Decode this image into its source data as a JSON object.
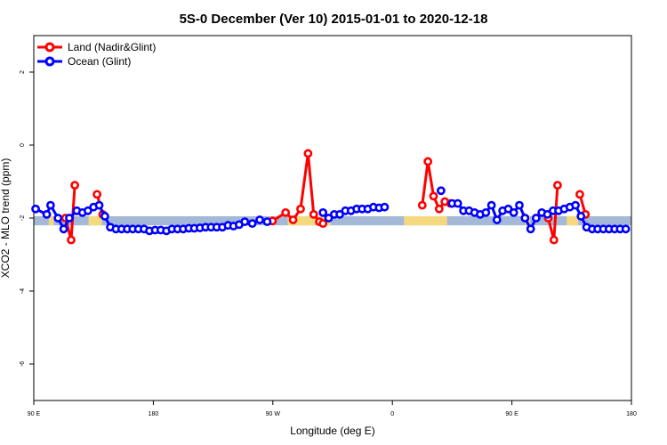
{
  "chart_data": {
    "type": "line",
    "title": "5S-0 December (Ver 10)   2015-01-01 to 2020-12-18",
    "xlabel": "Longitude (deg E)",
    "ylabel": "XCO2 - MLO trend (ppm)",
    "xlim": [
      90,
      450
    ],
    "ylim": [
      -7,
      3
    ],
    "x_ticks": [
      {
        "value": 90,
        "label": "90 E"
      },
      {
        "value": 162,
        "label": "180"
      },
      {
        "value": 234,
        "label": "90 W"
      },
      {
        "value": 306,
        "label": "0"
      },
      {
        "value": 378,
        "label": "90 E"
      },
      {
        "value": 450,
        "label": "180"
      }
    ],
    "y_ticks": [
      2,
      0,
      -2,
      -4,
      -6
    ],
    "legend": {
      "position": "top-left",
      "entries": [
        {
          "label": "Land (Nadir&Glint)",
          "color": "#ff0000"
        },
        {
          "label": "Ocean (Glint)",
          "color": "#0000ff"
        }
      ]
    },
    "surface_strip": {
      "y_range": [
        -2.2,
        -1.95
      ],
      "ocean_color": "#a4b8d8",
      "land_color": "#f5d97f",
      "land_x": [
        [
          99,
          102
        ],
        [
          123,
          131
        ],
        [
          243,
          269
        ],
        [
          313,
          339
        ],
        [
          386,
          389
        ],
        [
          411,
          418
        ]
      ]
    },
    "series": [
      {
        "name": "Land (Nadir&Glint)",
        "color": "#ff0000",
        "segments": [
          [
            [
              109.1,
              -2.0
            ],
            [
              112.5,
              -2.6
            ],
            [
              114.7,
              -1.1
            ]
          ],
          [
            [
              128.1,
              -1.35
            ],
            [
              131.5,
              -1.9
            ]
          ],
          [
            [
              233.8,
              -2.08
            ],
            [
              241.7,
              -1.85
            ],
            [
              246.2,
              -2.05
            ],
            [
              250.7,
              -1.75
            ],
            [
              255.2,
              -0.23
            ],
            [
              258.6,
              -1.9
            ],
            [
              262.0,
              -2.1
            ],
            [
              264.2,
              -2.15
            ]
          ],
          [
            [
              324.0,
              -1.65
            ],
            [
              327.4,
              -0.45
            ],
            [
              330.8,
              -1.4
            ],
            [
              334.2,
              -1.75
            ],
            [
              337.6,
              -1.55
            ],
            [
              341.0,
              -1.6
            ]
          ],
          [
            [
              399.9,
              -2.0
            ],
            [
              403.3,
              -2.6
            ],
            [
              405.5,
              -1.1
            ]
          ],
          [
            [
              418.9,
              -1.35
            ],
            [
              422.3,
              -1.9
            ]
          ]
        ]
      },
      {
        "name": "Ocean (Glint)",
        "color": "#0000ff",
        "segments": [
          [
            [
              91.1,
              -1.75
            ],
            [
              97.8,
              -1.9
            ],
            [
              100.1,
              -1.65
            ],
            [
              104.6,
              -2.0
            ],
            [
              108.0,
              -2.3
            ],
            [
              111.4,
              -2.0
            ],
            [
              115.9,
              -1.8
            ],
            [
              119.3,
              -1.85
            ],
            [
              122.6,
              -1.8
            ],
            [
              126.0,
              -1.7
            ],
            [
              129.4,
              -1.65
            ],
            [
              132.8,
              -1.95
            ],
            [
              136.1,
              -2.25
            ],
            [
              139.5,
              -2.3
            ],
            [
              142.9,
              -2.3
            ],
            [
              146.3,
              -2.3
            ],
            [
              149.6,
              -2.3
            ],
            [
              153.0,
              -2.3
            ],
            [
              156.4,
              -2.3
            ],
            [
              159.7,
              -2.35
            ],
            [
              163.1,
              -2.33
            ],
            [
              166.5,
              -2.33
            ],
            [
              169.9,
              -2.35
            ],
            [
              173.2,
              -2.3
            ],
            [
              176.6,
              -2.3
            ],
            [
              180.0,
              -2.3
            ],
            [
              183.4,
              -2.28
            ],
            [
              186.7,
              -2.28
            ],
            [
              190.1,
              -2.27
            ],
            [
              193.5,
              -2.25
            ],
            [
              196.8,
              -2.25
            ],
            [
              200.2,
              -2.25
            ],
            [
              203.6,
              -2.25
            ],
            [
              207.0,
              -2.2
            ],
            [
              210.3,
              -2.22
            ],
            [
              213.7,
              -2.18
            ],
            [
              217.1,
              -2.1
            ],
            [
              221.6,
              -2.15
            ],
            [
              226.1,
              -2.05
            ],
            [
              230.6,
              -2.1
            ]
          ],
          [
            [
              264.2,
              -1.85
            ],
            [
              267.6,
              -2.0
            ],
            [
              271.0,
              -1.9
            ],
            [
              274.3,
              -1.9
            ],
            [
              277.7,
              -1.8
            ],
            [
              281.1,
              -1.8
            ],
            [
              284.5,
              -1.75
            ],
            [
              287.8,
              -1.75
            ],
            [
              291.2,
              -1.75
            ],
            [
              294.6,
              -1.7
            ],
            [
              298.0,
              -1.72
            ],
            [
              301.3,
              -1.7
            ]
          ],
          [
            [
              335.3,
              -1.25
            ]
          ],
          [
            [
              342.0,
              -1.6
            ],
            [
              345.4,
              -1.6
            ],
            [
              348.8,
              -1.8
            ],
            [
              352.2,
              -1.8
            ],
            [
              355.5,
              -1.85
            ],
            [
              358.9,
              -1.9
            ],
            [
              362.3,
              -1.85
            ],
            [
              365.7,
              -1.65
            ],
            [
              369.0,
              -2.05
            ],
            [
              372.4,
              -1.8
            ],
            [
              375.8,
              -1.75
            ],
            [
              379.1,
              -1.85
            ],
            [
              382.5,
              -1.65
            ],
            [
              385.9,
              -2.0
            ],
            [
              389.3,
              -2.3
            ],
            [
              392.6,
              -2.0
            ],
            [
              396.0,
              -1.85
            ],
            [
              399.4,
              -1.9
            ],
            [
              402.8,
              -1.8
            ],
            [
              406.1,
              -1.8
            ],
            [
              409.5,
              -1.75
            ],
            [
              412.9,
              -1.7
            ],
            [
              416.3,
              -1.65
            ],
            [
              419.6,
              -1.95
            ],
            [
              423.0,
              -2.25
            ],
            [
              426.4,
              -2.3
            ],
            [
              429.7,
              -2.3
            ],
            [
              433.1,
              -2.3
            ],
            [
              436.5,
              -2.3
            ],
            [
              439.9,
              -2.3
            ],
            [
              443.2,
              -2.3
            ],
            [
              446.6,
              -2.3
            ]
          ]
        ]
      }
    ]
  }
}
